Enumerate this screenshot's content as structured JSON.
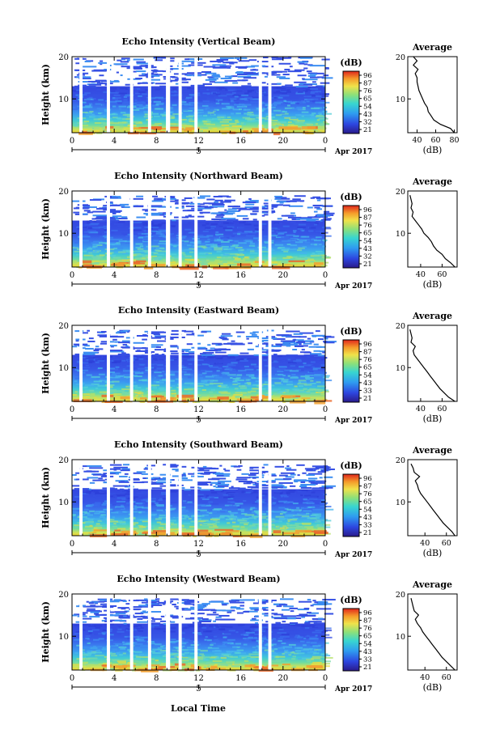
{
  "figure": {
    "xlabel": "Local Time",
    "date_label": "Apr 2017",
    "day_label": "5",
    "ylabel": "Height (km)",
    "colorbar_unit": "(dB)",
    "colorbar_ticks": [
      "96",
      "87",
      "76",
      "65",
      "54",
      "43",
      "32",
      "21"
    ],
    "colorbar_ticks_variant": [
      "96",
      "87",
      "76",
      "65",
      "54",
      "43",
      "33",
      "21"
    ],
    "avg_title": "Average",
    "avg_xlabel": "(dB)"
  },
  "chart_data": [
    {
      "type": "heatmap",
      "title": "Echo Intensity (Vertical Beam)",
      "x_ticks": [
        "0",
        "4",
        "8",
        "12",
        "16",
        "20",
        "0"
      ],
      "y_ticks": [
        "10",
        "20"
      ],
      "xlim": [
        0,
        24
      ],
      "ylim": [
        2,
        20
      ],
      "colorbar_ticks": [
        "96",
        "87",
        "76",
        "65",
        "54",
        "43",
        "32",
        "21"
      ],
      "data_ceiling_km": 20,
      "profile": {
        "type": "line",
        "x_ticks": [
          "40",
          "60",
          "80"
        ],
        "xlim": [
          30,
          83
        ],
        "y_ticks": [
          "10",
          "20"
        ],
        "ylim": [
          2,
          20
        ],
        "points": [
          [
            80,
            2
          ],
          [
            76,
            3
          ],
          [
            65,
            4
          ],
          [
            58,
            5
          ],
          [
            55,
            6
          ],
          [
            52,
            7
          ],
          [
            51,
            8
          ],
          [
            48,
            9
          ],
          [
            46,
            10
          ],
          [
            44,
            11
          ],
          [
            42,
            12
          ],
          [
            41,
            13
          ],
          [
            40,
            14
          ],
          [
            40,
            15
          ],
          [
            38,
            16
          ],
          [
            41,
            17
          ],
          [
            36,
            18
          ],
          [
            40,
            19
          ],
          [
            36,
            20
          ]
        ]
      }
    },
    {
      "type": "heatmap",
      "title": "Echo Intensity (Northward Beam)",
      "x_ticks": [
        "0",
        "4",
        "8",
        "12",
        "16",
        "20",
        "0"
      ],
      "y_ticks": [
        "10",
        "20"
      ],
      "xlim": [
        0,
        24
      ],
      "ylim": [
        2,
        20
      ],
      "colorbar_ticks": [
        "96",
        "87",
        "76",
        "65",
        "54",
        "43",
        "32",
        "21"
      ],
      "data_ceiling_km": 19,
      "profile": {
        "type": "line",
        "x_ticks": [
          "40",
          "60"
        ],
        "xlim": [
          28,
          74
        ],
        "y_ticks": [
          "10",
          "20"
        ],
        "ylim": [
          2,
          20
        ],
        "points": [
          [
            72,
            2
          ],
          [
            68,
            3
          ],
          [
            63,
            4
          ],
          [
            60,
            5
          ],
          [
            55,
            6
          ],
          [
            52,
            7
          ],
          [
            50,
            8
          ],
          [
            47,
            9
          ],
          [
            43,
            10
          ],
          [
            41,
            11
          ],
          [
            38,
            12
          ],
          [
            35,
            13
          ],
          [
            32,
            14
          ],
          [
            33,
            15
          ],
          [
            31,
            16
          ],
          [
            32,
            17
          ],
          [
            31,
            18
          ],
          [
            30,
            19
          ]
        ]
      }
    },
    {
      "type": "heatmap",
      "title": "Echo Intensity (Eastward Beam)",
      "x_ticks": [
        "0",
        "4",
        "8",
        "12",
        "16",
        "20",
        "0"
      ],
      "y_ticks": [
        "10",
        "20"
      ],
      "xlim": [
        0,
        24
      ],
      "ylim": [
        2,
        20
      ],
      "colorbar_ticks": [
        "96",
        "87",
        "76",
        "65",
        "54",
        "43",
        "33",
        "21"
      ],
      "data_ceiling_km": 19,
      "profile": {
        "type": "line",
        "x_ticks": [
          "40",
          "60"
        ],
        "xlim": [
          28,
          74
        ],
        "y_ticks": [
          "10",
          "20"
        ],
        "ylim": [
          2,
          20
        ],
        "points": [
          [
            72,
            2
          ],
          [
            66,
            3
          ],
          [
            62,
            4
          ],
          [
            58,
            5
          ],
          [
            55,
            6
          ],
          [
            52,
            7
          ],
          [
            49,
            8
          ],
          [
            46,
            9
          ],
          [
            43,
            10
          ],
          [
            40,
            11
          ],
          [
            37,
            12
          ],
          [
            34,
            13
          ],
          [
            33,
            14
          ],
          [
            35,
            15
          ],
          [
            31,
            16
          ],
          [
            32,
            17
          ],
          [
            31,
            18
          ],
          [
            30,
            19
          ]
        ]
      }
    },
    {
      "type": "heatmap",
      "title": "Echo Intensity (Southward Beam)",
      "x_ticks": [
        "0",
        "4",
        "8",
        "12",
        "16",
        "20",
        "0"
      ],
      "y_ticks": [
        "10",
        "20"
      ],
      "xlim": [
        0,
        24
      ],
      "ylim": [
        2,
        20
      ],
      "colorbar_ticks": [
        "96",
        "87",
        "76",
        "65",
        "54",
        "43",
        "33",
        "21"
      ],
      "data_ceiling_km": 19,
      "profile": {
        "type": "line",
        "x_ticks": [
          "40",
          "60"
        ],
        "xlim": [
          24,
          70
        ],
        "y_ticks": [
          "10",
          "20"
        ],
        "ylim": [
          2,
          20
        ],
        "points": [
          [
            68,
            2
          ],
          [
            65,
            3
          ],
          [
            61,
            4
          ],
          [
            57,
            5
          ],
          [
            54,
            6
          ],
          [
            51,
            7
          ],
          [
            48,
            8
          ],
          [
            45,
            9
          ],
          [
            42,
            10
          ],
          [
            39,
            11
          ],
          [
            36,
            12
          ],
          [
            34,
            13
          ],
          [
            33,
            14
          ],
          [
            31,
            15
          ],
          [
            35,
            16
          ],
          [
            30,
            17
          ],
          [
            29,
            18
          ],
          [
            27,
            19
          ]
        ]
      }
    },
    {
      "type": "heatmap",
      "title": "Echo Intensity (Westward Beam)",
      "x_ticks": [
        "0",
        "4",
        "8",
        "12",
        "16",
        "20",
        "0"
      ],
      "y_ticks": [
        "10",
        "20"
      ],
      "xlim": [
        0,
        24
      ],
      "ylim": [
        2,
        20
      ],
      "colorbar_ticks": [
        "96",
        "87",
        "76",
        "65",
        "54",
        "43",
        "33",
        "21"
      ],
      "data_ceiling_km": 19,
      "profile": {
        "type": "line",
        "x_ticks": [
          "40",
          "60"
        ],
        "xlim": [
          24,
          70
        ],
        "y_ticks": [
          "10",
          "20"
        ],
        "ylim": [
          2,
          20
        ],
        "points": [
          [
            68,
            2
          ],
          [
            64,
            3
          ],
          [
            60,
            4
          ],
          [
            56,
            5
          ],
          [
            53,
            6
          ],
          [
            50,
            7
          ],
          [
            47,
            8
          ],
          [
            44,
            9
          ],
          [
            41,
            10
          ],
          [
            38,
            11
          ],
          [
            36,
            12
          ],
          [
            33,
            13
          ],
          [
            31,
            14
          ],
          [
            34,
            15
          ],
          [
            30,
            16
          ],
          [
            29,
            17
          ],
          [
            28,
            18
          ],
          [
            27,
            19
          ]
        ]
      }
    }
  ],
  "data_gaps_hours": [
    [
      0.7,
      1.0
    ],
    [
      3.3,
      3.6
    ],
    [
      5.5,
      5.8
    ],
    [
      7.2,
      7.5
    ],
    [
      8.9,
      9.3
    ],
    [
      10.1,
      10.4
    ],
    [
      11.6,
      11.9
    ],
    [
      17.7,
      18.0
    ],
    [
      18.6,
      18.9
    ]
  ]
}
